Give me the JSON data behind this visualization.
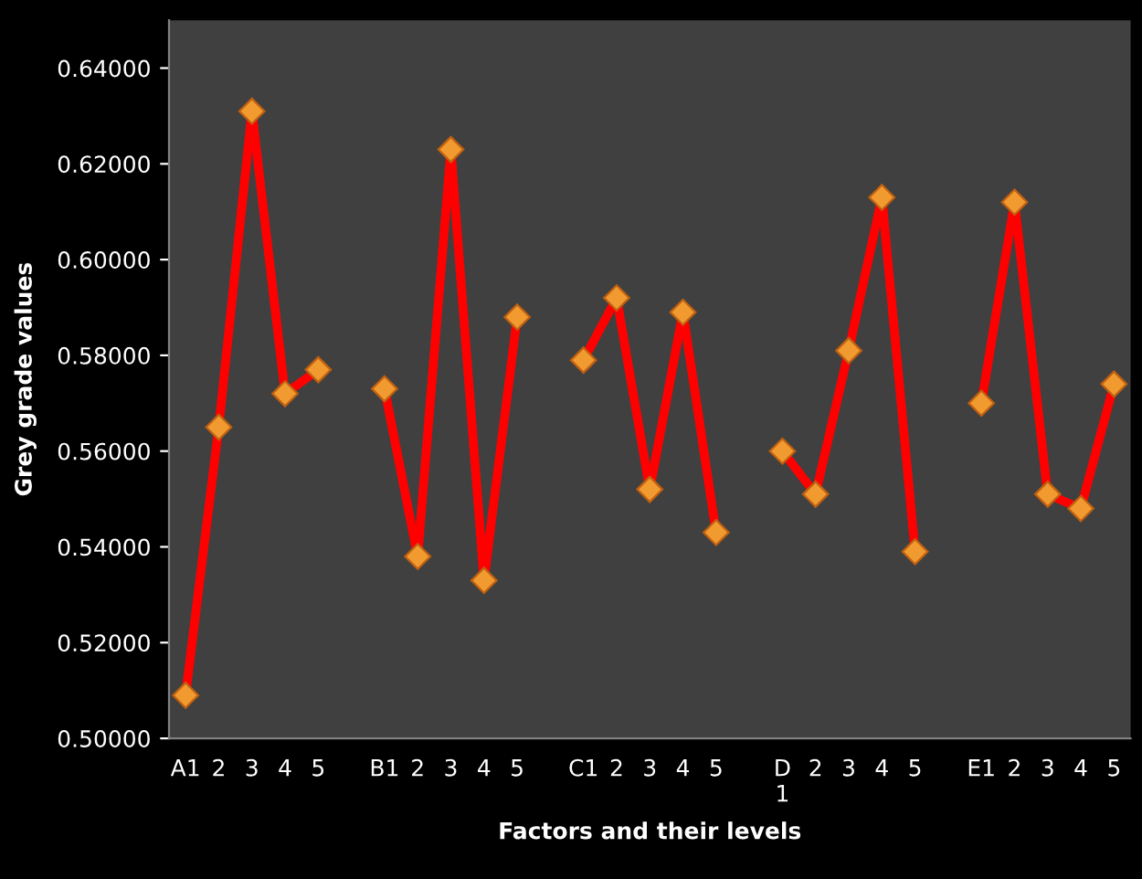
{
  "chart_data": {
    "type": "line",
    "xlabel": "Factors and their levels",
    "ylabel": "Grey grade values",
    "categories": [
      "A1",
      "2",
      "3",
      "4",
      "5",
      null,
      "B1",
      "2",
      "3",
      "4",
      "5",
      null,
      "C1",
      "2",
      "3",
      "4",
      "5",
      null,
      "D\n1",
      "2",
      "3",
      "4",
      "5",
      null,
      "E1",
      "2",
      "3",
      "4",
      "5"
    ],
    "series": [
      {
        "color": "#ff0000",
        "values": [
          0.509,
          0.565,
          0.631,
          0.572,
          0.577,
          null,
          0.573,
          0.538,
          0.623,
          0.533,
          0.588,
          null,
          0.579,
          0.592,
          0.552,
          0.589,
          0.543,
          null,
          0.56,
          0.551,
          0.581,
          0.613,
          0.539,
          null,
          0.57,
          0.612,
          0.551,
          0.548,
          0.574
        ]
      }
    ],
    "ylim": [
      0.5,
      0.65
    ],
    "yticks": [
      {
        "value": 0.5,
        "label": "0.50000"
      },
      {
        "value": 0.52,
        "label": "0.52000"
      },
      {
        "value": 0.54,
        "label": "0.54000"
      },
      {
        "value": 0.56,
        "label": "0.56000"
      },
      {
        "value": 0.58,
        "label": "0.58000"
      },
      {
        "value": 0.6,
        "label": "0.60000"
      },
      {
        "value": 0.62,
        "label": "0.62000"
      },
      {
        "value": 0.64,
        "label": "0.64000"
      }
    ],
    "marker": "diamond",
    "line_style": "solid",
    "grid": false
  }
}
